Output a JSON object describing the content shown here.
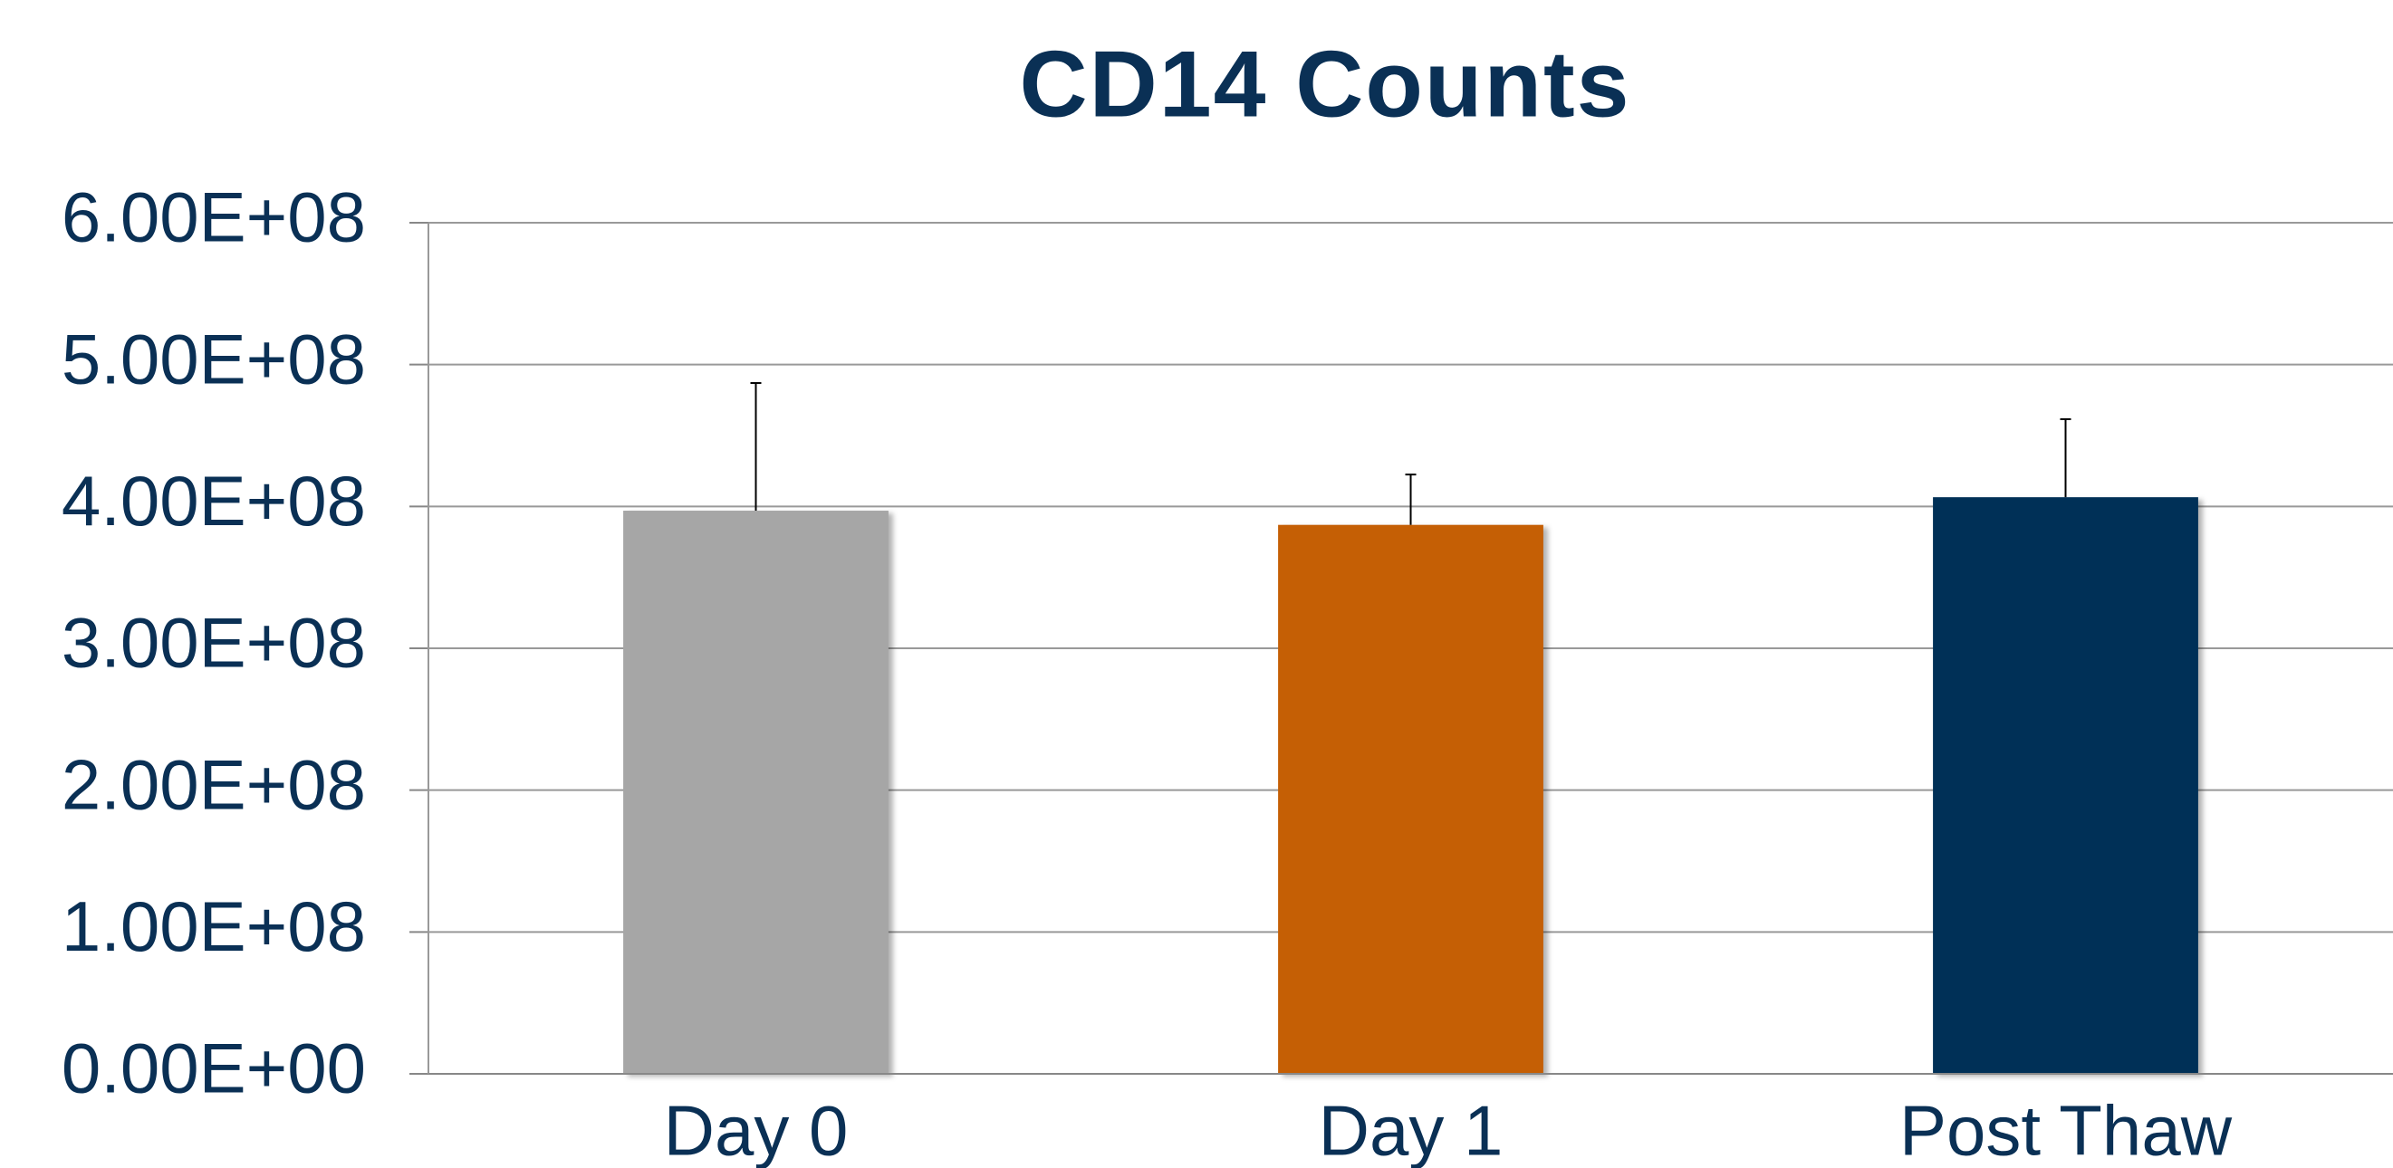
{
  "chart_data": {
    "type": "bar",
    "title": "CD14 Counts",
    "categories": [
      "Day 0",
      "Day 1",
      "Post Thaw"
    ],
    "values": [
      397000000,
      387000000,
      406500000
    ],
    "errors": [
      90000000,
      35500000,
      55000000
    ],
    "colors": [
      "#a6a6a6",
      "#c55f05",
      "#003057"
    ],
    "ylim": [
      0,
      600000000
    ],
    "yticks": [
      {
        "value": 0,
        "label": "0.00E+00"
      },
      {
        "value": 100000000,
        "label": "1.00E+08"
      },
      {
        "value": 200000000,
        "label": "2.00E+08"
      },
      {
        "value": 300000000,
        "label": "3.00E+08"
      },
      {
        "value": 400000000,
        "label": "4.00E+08"
      },
      {
        "value": 500000000,
        "label": "5.00E+08"
      },
      {
        "value": 600000000,
        "label": "6.00E+08"
      }
    ],
    "grid": true
  }
}
